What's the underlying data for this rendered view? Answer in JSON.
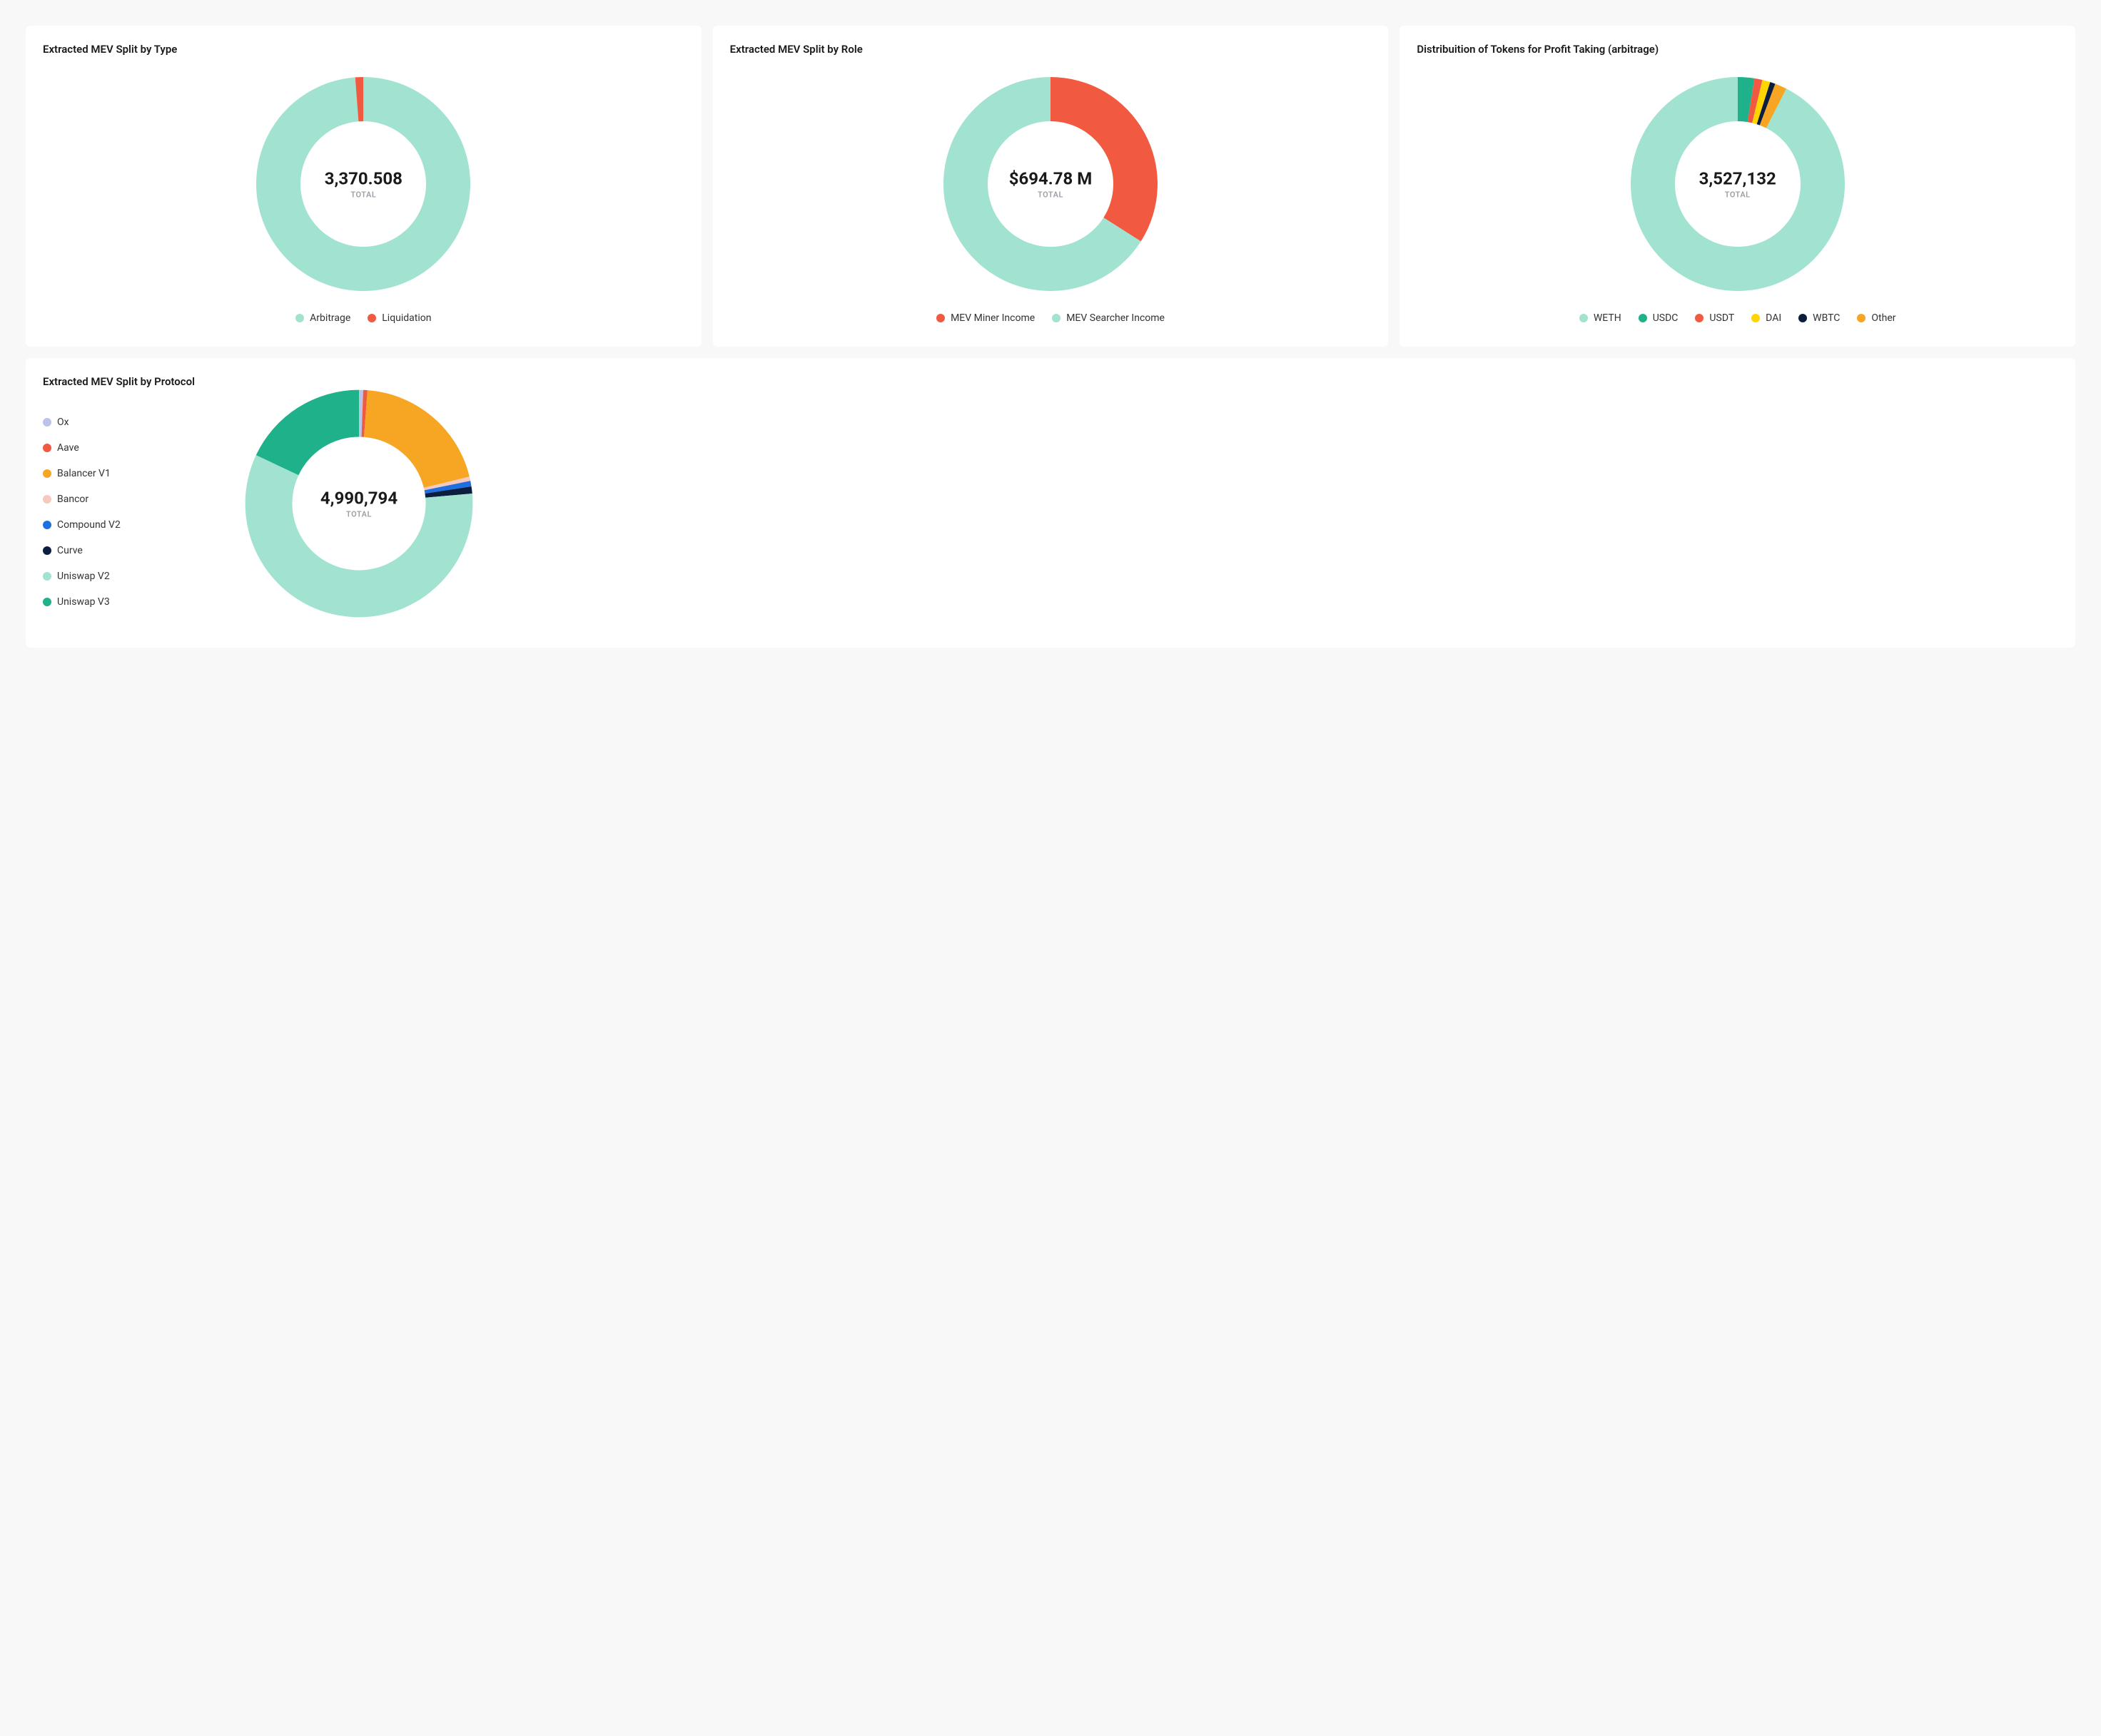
{
  "page_bg": "#f8f8f8",
  "card_bg": "#ffffff",
  "text_primary": "#1a1a1a",
  "text_muted": "#9aa0a6",
  "total_label": "TOTAL",
  "donut": {
    "outer_r": 150,
    "inner_r": 88,
    "gap_deg": 0,
    "start_angle_deg": 0
  },
  "charts": {
    "type": {
      "title": "Extracted MEV Split by Type",
      "center_value": "3,370.508",
      "series": [
        {
          "label": "Arbitrage",
          "value": 98.8,
          "color": "#a1e3d0"
        },
        {
          "label": "Liquidation",
          "value": 1.2,
          "color": "#f15a40"
        }
      ]
    },
    "role": {
      "title": "Extracted MEV Split by Role",
      "center_value": "$694.78 M",
      "series": [
        {
          "label": "MEV Miner Income",
          "value": 34,
          "color": "#f15a40"
        },
        {
          "label": "MEV Searcher Income",
          "value": 66,
          "color": "#a1e3d0"
        }
      ],
      "legend_order": [
        "MEV Miner Income",
        "MEV Searcher Income"
      ]
    },
    "tokens": {
      "title": "Distribuition of Tokens for Profit Taking (arbitrage)",
      "center_value": "3,527,132",
      "series": [
        {
          "label": "WETH",
          "value": 92.5,
          "color": "#a1e3d0"
        },
        {
          "label": "USDC",
          "value": 2.5,
          "color": "#1fb28a"
        },
        {
          "label": "USDT",
          "value": 1.2,
          "color": "#f15a40"
        },
        {
          "label": "DAI",
          "value": 1.2,
          "color": "#ffd500"
        },
        {
          "label": "WBTC",
          "value": 0.8,
          "color": "#0c1e3e"
        },
        {
          "label": "Other",
          "value": 1.8,
          "color": "#f6a623"
        }
      ],
      "series_start": "USDC"
    },
    "protocol": {
      "title": "Extracted MEV Split by Protocol",
      "center_value": "4,990,794",
      "series": [
        {
          "label": "Ox",
          "value": 0.6,
          "color": "#b9c4e8"
        },
        {
          "label": "Aave",
          "value": 0.6,
          "color": "#f15a40"
        },
        {
          "label": "Balancer V1",
          "value": 20.0,
          "color": "#f6a623"
        },
        {
          "label": "Bancor",
          "value": 0.6,
          "color": "#f7c8bd"
        },
        {
          "label": "Compound V2",
          "value": 0.8,
          "color": "#1f6fe0"
        },
        {
          "label": "Curve",
          "value": 1.0,
          "color": "#0c1e3e"
        },
        {
          "label": "Uniswap V2",
          "value": 58.4,
          "color": "#a1e3d0"
        },
        {
          "label": "Uniswap V3",
          "value": 18.0,
          "color": "#1fb28a"
        }
      ],
      "legend_layout": "vertical-left"
    }
  }
}
